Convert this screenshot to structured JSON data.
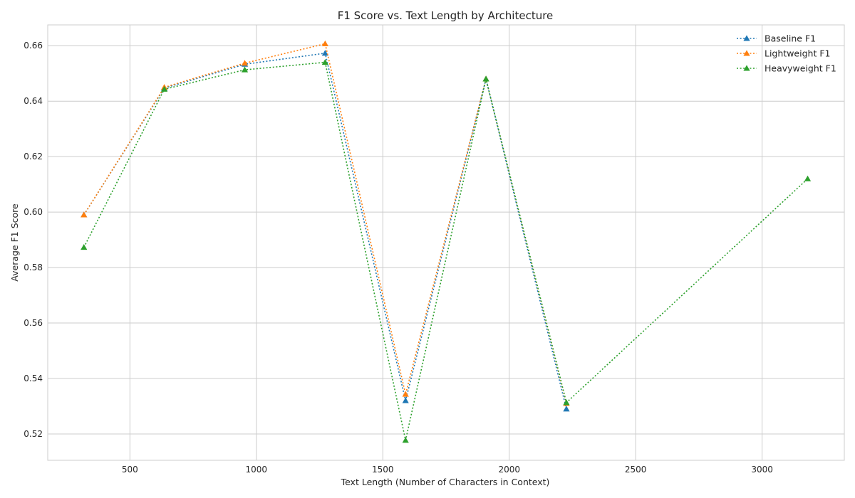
{
  "chart_data": {
    "type": "line",
    "title": "F1 Score vs. Text Length by Architecture",
    "xlabel": "Text Length (Number of Characters in Context)",
    "ylabel": "Average F1 Score",
    "xlim": [
      175,
      3325
    ],
    "ylim": [
      0.5105,
      0.6675
    ],
    "xticks": [
      500,
      1000,
      1500,
      2000,
      2500,
      3000
    ],
    "yticks": [
      0.52,
      0.54,
      0.56,
      0.58,
      0.6,
      0.62,
      0.64,
      0.66
    ],
    "xtick_labels": [
      "500",
      "1000",
      "1500",
      "2000",
      "2500",
      "3000"
    ],
    "ytick_labels": [
      "0.52",
      "0.54",
      "0.56",
      "0.58",
      "0.60",
      "0.62",
      "0.64",
      "0.66"
    ],
    "grid": true,
    "legend_position": "top-right",
    "series": [
      {
        "name": "Baseline F1",
        "color": "#1f77b4",
        "marker": "triangle",
        "line_style": "dotted",
        "x": [
          318,
          636,
          954,
          1272,
          1590,
          1908,
          2226,
          3180
        ],
        "y": [
          0.599,
          0.6447,
          0.6533,
          0.6573,
          0.532,
          0.648,
          0.529,
          null
        ]
      },
      {
        "name": "Lightweight F1",
        "color": "#ff7f0e",
        "marker": "triangle",
        "line_style": "dotted",
        "x": [
          318,
          636,
          954,
          1272,
          1590,
          1908,
          2226,
          3180
        ],
        "y": [
          0.599,
          0.645,
          0.6537,
          0.6607,
          0.5343,
          0.648,
          0.531,
          null
        ]
      },
      {
        "name": "Heavyweight F1",
        "color": "#2ca02c",
        "marker": "triangle",
        "line_style": "dotted",
        "x": [
          318,
          636,
          954,
          1272,
          1590,
          1908,
          2226,
          3180
        ],
        "y": [
          0.5873,
          0.6443,
          0.6513,
          0.654,
          0.5177,
          0.648,
          0.5313,
          0.612
        ]
      }
    ]
  }
}
